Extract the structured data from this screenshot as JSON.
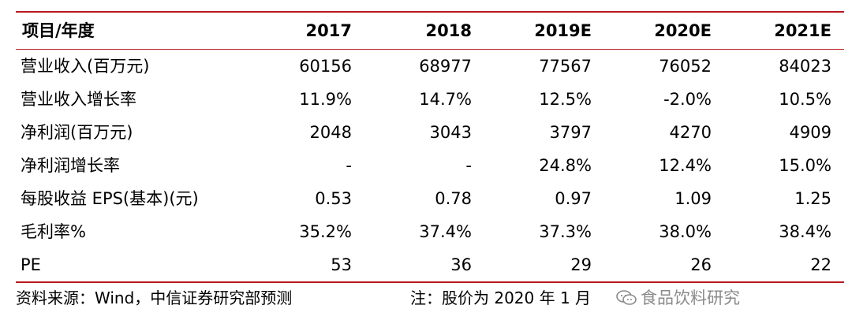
{
  "table": {
    "header": [
      "项目/年度",
      "2017",
      "2018",
      "2019E",
      "2020E",
      "2021E"
    ],
    "rows": [
      [
        "营业收入(百万元)",
        "60156",
        "68977",
        "77567",
        "76052",
        "84023"
      ],
      [
        "营业收入增长率",
        "11.9%",
        "14.7%",
        "12.5%",
        "-2.0%",
        "10.5%"
      ],
      [
        "净利润(百万元)",
        "2048",
        "3043",
        "3797",
        "4270",
        "4909"
      ],
      [
        "净利润增长率",
        "-",
        "-",
        "24.8%",
        "12.4%",
        "15.0%"
      ],
      [
        "每股收益 EPS(基本)(元)",
        "0.53",
        "0.78",
        "0.97",
        "1.09",
        "1.25"
      ],
      [
        "毛利率%",
        "35.2%",
        "37.4%",
        "37.3%",
        "38.0%",
        "38.4%"
      ],
      [
        "PE",
        "53",
        "36",
        "29",
        "26",
        "22"
      ]
    ]
  },
  "footer": {
    "source": "资料来源：Wind，中信证券研究部预测",
    "note": "注：股价为 2020 年 1 月",
    "watermark": "食品饮料研究",
    "watermark_icon": "wechat-icon"
  },
  "colors": {
    "rule": "#b7191f",
    "watermark": "#8a8a8a"
  }
}
